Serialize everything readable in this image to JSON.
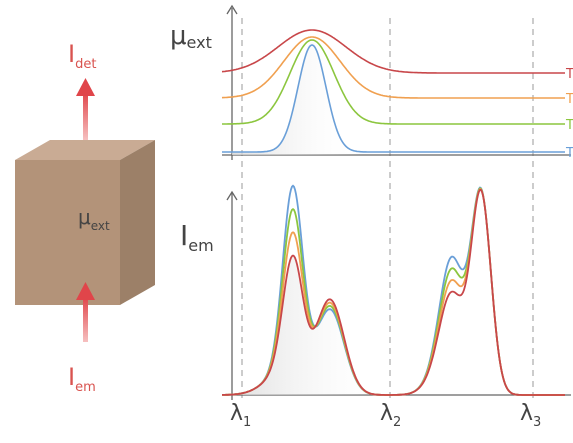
{
  "left": {
    "detected": {
      "symbol": "I",
      "subscript": "det"
    },
    "cube": {
      "symbol": "μ",
      "subscript": "ext"
    },
    "excitation": {
      "symbol": "I",
      "subscript": "em"
    }
  },
  "top_plot": {
    "y_label": {
      "symbol": "μ",
      "subscript": "ext"
    },
    "curve_labels": [
      "T",
      "T",
      "T",
      "T"
    ]
  },
  "bottom_plot": {
    "y_label": {
      "symbol": "I",
      "subscript": "em"
    },
    "wavelengths": [
      {
        "symbol": "λ",
        "subscript": "1"
      },
      {
        "symbol": "λ",
        "subscript": "2"
      },
      {
        "symbol": "λ",
        "subscript": "3"
      }
    ]
  }
}
